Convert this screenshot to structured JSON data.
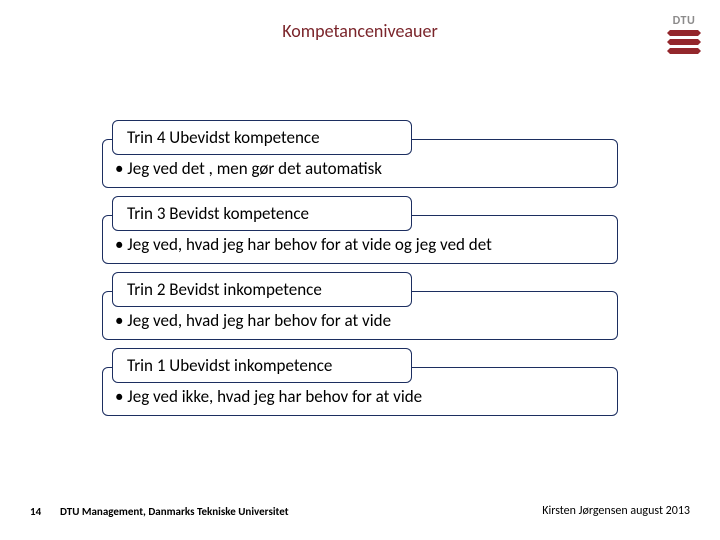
{
  "title": "Kompetanceniveauer",
  "logo": {
    "text": "DTU"
  },
  "steps": [
    {
      "header": "Trin 4 Ubevidst kompetence",
      "body": "• Jeg ved det , men gør det automatisk"
    },
    {
      "header": "Trin 3 Bevidst kompetence",
      "body": "• Jeg ved, hvad jeg har behov for at vide og jeg ved det"
    },
    {
      "header": "Trin 2 Bevidst inkompetence",
      "body": "• Jeg ved, hvad jeg  har behov for at vide"
    },
    {
      "header": "Trin 1 Ubevidst inkompetence",
      "body": "• Jeg ved  ikke, hvad jeg har behov for at vide"
    }
  ],
  "footer": {
    "page": "14",
    "center": "DTU Management, Danmarks Tekniske Universitet",
    "right": "Kirsten Jørgensen august 2013"
  },
  "colors": {
    "title_color": "#7a242a",
    "box_border": "#1c2e60",
    "logo_red": "#93272c",
    "logo_text": "#8c8b8b"
  }
}
